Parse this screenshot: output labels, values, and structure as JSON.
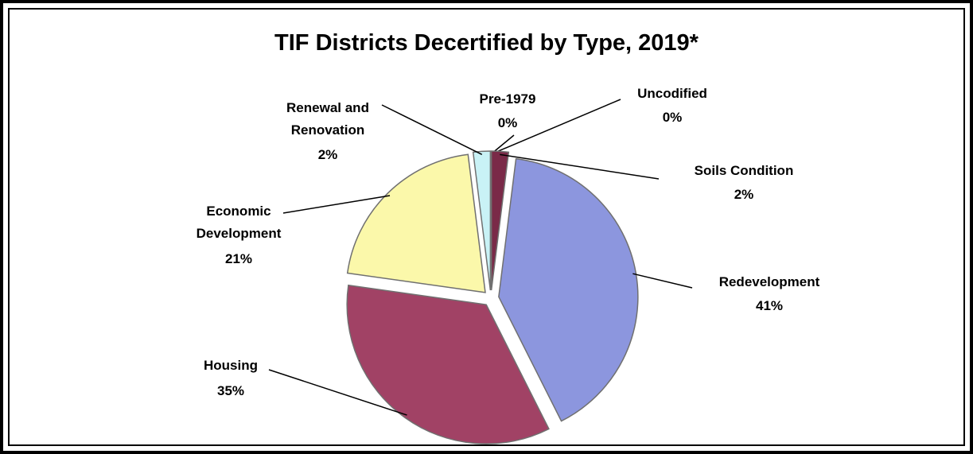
{
  "chart_data": {
    "type": "pie",
    "title": "TIF Districts Decertified by Type, 2019*",
    "categories": [
      "Pre-1979",
      "Uncodified",
      "Soils Condition",
      "Redevelopment",
      "Housing",
      "Economic Development",
      "Renewal and Renovation"
    ],
    "values": [
      0,
      0,
      2,
      41,
      35,
      21,
      2
    ],
    "value_labels": [
      "0%",
      "0%",
      "2%",
      "41%",
      "35%",
      "21%",
      "2%"
    ],
    "colors": [
      "#a4a4d8",
      "#6a6a6a",
      "#7a2a48",
      "#8c96de",
      "#a14265",
      "#fbf8aa",
      "#c9f2f6"
    ]
  }
}
